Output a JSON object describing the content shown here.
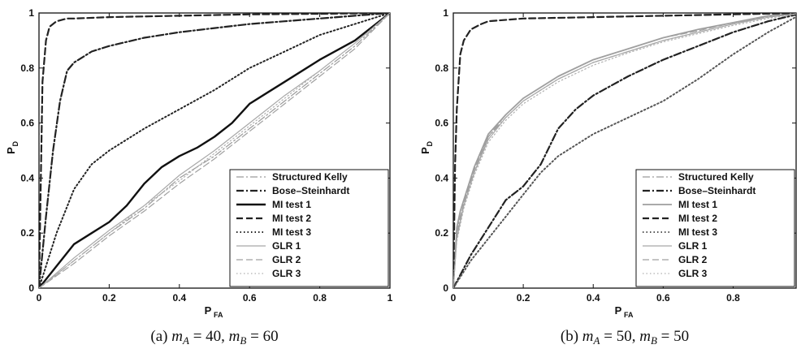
{
  "chart_data": [
    {
      "type": "line",
      "caption": "(a) m_A = 40, m_B = 60",
      "xlabel": "P",
      "xlabel_sub": "FA",
      "ylabel": "P",
      "ylabel_sub": "D",
      "xlim": [
        0,
        1
      ],
      "ylim": [
        0,
        1
      ],
      "xticks": [
        "0",
        "0.2",
        "0.4",
        "0.6",
        "0.8",
        "1"
      ],
      "yticks": [
        "0",
        "0.2",
        "0.4",
        "0.6",
        "0.8",
        "1"
      ],
      "grid": false,
      "legend_position": "bottom-right",
      "series": [
        {
          "name": "Structured Kelly",
          "style": "dashdot",
          "color": "#9a9a9a",
          "width": 1.2,
          "x": [
            0,
            0.1,
            0.2,
            0.3,
            0.4,
            0.5,
            0.6,
            0.7,
            0.8,
            0.9,
            1.0
          ],
          "y": [
            0,
            0.1,
            0.2,
            0.29,
            0.4,
            0.48,
            0.58,
            0.68,
            0.78,
            0.88,
            1.0
          ]
        },
        {
          "name": "Bose–Steinhardt",
          "style": "dashdot",
          "color": "#222222",
          "width": 2.2,
          "x": [
            0,
            0.02,
            0.04,
            0.06,
            0.08,
            0.1,
            0.15,
            0.2,
            0.3,
            0.4,
            0.5,
            0.6,
            0.7,
            0.8,
            0.9,
            1.0
          ],
          "y": [
            0,
            0.26,
            0.5,
            0.68,
            0.79,
            0.82,
            0.86,
            0.88,
            0.91,
            0.93,
            0.945,
            0.96,
            0.97,
            0.98,
            0.99,
            1.0
          ]
        },
        {
          "name": "MI test 1",
          "style": "solid",
          "color": "#111111",
          "width": 2.4,
          "x": [
            0,
            0.05,
            0.1,
            0.15,
            0.2,
            0.25,
            0.3,
            0.35,
            0.4,
            0.45,
            0.5,
            0.55,
            0.6,
            0.65,
            0.7,
            0.8,
            0.9,
            1.0
          ],
          "y": [
            0,
            0.08,
            0.16,
            0.2,
            0.24,
            0.3,
            0.38,
            0.44,
            0.48,
            0.51,
            0.55,
            0.6,
            0.67,
            0.71,
            0.75,
            0.83,
            0.9,
            1.0
          ]
        },
        {
          "name": "MI test 2",
          "style": "dashed",
          "color": "#222222",
          "width": 2.2,
          "x": [
            0,
            0.01,
            0.02,
            0.03,
            0.05,
            0.08,
            0.1,
            0.2,
            0.4,
            0.6,
            0.8,
            1.0
          ],
          "y": [
            0,
            0.75,
            0.9,
            0.95,
            0.97,
            0.98,
            0.98,
            0.985,
            0.99,
            0.995,
            0.997,
            1.0
          ]
        },
        {
          "name": "MI test 3",
          "style": "dotted",
          "color": "#222222",
          "width": 2.0,
          "x": [
            0,
            0.05,
            0.1,
            0.15,
            0.2,
            0.3,
            0.4,
            0.5,
            0.6,
            0.7,
            0.8,
            0.9,
            1.0
          ],
          "y": [
            0,
            0.2,
            0.36,
            0.45,
            0.5,
            0.58,
            0.65,
            0.72,
            0.8,
            0.86,
            0.92,
            0.96,
            1.0
          ]
        },
        {
          "name": "GLR 1",
          "style": "solid",
          "color": "#a8a8a8",
          "width": 1.2,
          "x": [
            0,
            0.1,
            0.2,
            0.3,
            0.4,
            0.5,
            0.6,
            0.7,
            0.8,
            0.9,
            1.0
          ],
          "y": [
            0,
            0.11,
            0.21,
            0.3,
            0.41,
            0.5,
            0.6,
            0.7,
            0.79,
            0.89,
            1.0
          ]
        },
        {
          "name": "GLR 2",
          "style": "dashed",
          "color": "#a0a0a0",
          "width": 1.2,
          "x": [
            0,
            0.1,
            0.2,
            0.3,
            0.4,
            0.5,
            0.6,
            0.7,
            0.8,
            0.9,
            1.0
          ],
          "y": [
            0,
            0.09,
            0.19,
            0.28,
            0.38,
            0.47,
            0.57,
            0.67,
            0.77,
            0.87,
            1.0
          ]
        },
        {
          "name": "GLR 3",
          "style": "dotted",
          "color": "#b0b0b0",
          "width": 1.2,
          "x": [
            0,
            0.1,
            0.2,
            0.3,
            0.4,
            0.5,
            0.6,
            0.7,
            0.8,
            0.9,
            1.0
          ],
          "y": [
            0,
            0.1,
            0.2,
            0.3,
            0.39,
            0.49,
            0.59,
            0.69,
            0.79,
            0.89,
            1.0
          ]
        }
      ]
    },
    {
      "type": "line",
      "caption": "(b) m_A = 50, m_B = 50",
      "xlabel": "P",
      "xlabel_sub": "FA",
      "ylabel": "P",
      "ylabel_sub": "D",
      "xlim": [
        0,
        1
      ],
      "ylim": [
        0,
        1
      ],
      "xticks": [
        "0",
        "0.2",
        "0.4",
        "0.6",
        "0.8"
      ],
      "yticks": [
        "0",
        "0.2",
        "0.4",
        "0.6",
        "0.8",
        "1"
      ],
      "grid": false,
      "legend_position": "bottom-right",
      "series": [
        {
          "name": "Structured Kelly",
          "style": "dashdot",
          "color": "#9a9a9a",
          "width": 1.2,
          "x": [
            0,
            0.01,
            0.02,
            0.04,
            0.06,
            0.1,
            0.15,
            0.2,
            0.3,
            0.4,
            0.5,
            0.6,
            0.7,
            0.8,
            0.9,
            1.0
          ],
          "y": [
            0,
            0.2,
            0.26,
            0.34,
            0.42,
            0.55,
            0.62,
            0.68,
            0.76,
            0.82,
            0.86,
            0.9,
            0.93,
            0.96,
            0.985,
            1.0
          ]
        },
        {
          "name": "Bose–Steinhardt",
          "style": "dashdot",
          "color": "#222222",
          "width": 2.2,
          "x": [
            0,
            0.05,
            0.1,
            0.15,
            0.2,
            0.25,
            0.3,
            0.35,
            0.4,
            0.5,
            0.6,
            0.7,
            0.8,
            0.9,
            1.0
          ],
          "y": [
            0,
            0.12,
            0.22,
            0.32,
            0.37,
            0.45,
            0.58,
            0.65,
            0.7,
            0.77,
            0.83,
            0.88,
            0.93,
            0.97,
            1.0
          ]
        },
        {
          "name": "MI test 1",
          "style": "solid",
          "color": "#9e9e9e",
          "width": 1.8,
          "x": [
            0,
            0.01,
            0.02,
            0.04,
            0.06,
            0.1,
            0.15,
            0.2,
            0.3,
            0.4,
            0.5,
            0.6,
            0.7,
            0.8,
            0.9,
            1.0
          ],
          "y": [
            0,
            0.22,
            0.28,
            0.36,
            0.44,
            0.56,
            0.63,
            0.69,
            0.77,
            0.83,
            0.87,
            0.91,
            0.94,
            0.965,
            0.99,
            1.0
          ]
        },
        {
          "name": "MI test 2",
          "style": "dashed",
          "color": "#222222",
          "width": 2.2,
          "x": [
            0,
            0.005,
            0.01,
            0.02,
            0.03,
            0.05,
            0.08,
            0.1,
            0.2,
            0.4,
            0.6,
            0.8,
            1.0
          ],
          "y": [
            0,
            0.45,
            0.65,
            0.85,
            0.9,
            0.94,
            0.96,
            0.97,
            0.98,
            0.985,
            0.99,
            0.995,
            1.0
          ]
        },
        {
          "name": "MI test 3",
          "style": "dotted",
          "color": "#555555",
          "width": 2.0,
          "x": [
            0,
            0.05,
            0.1,
            0.15,
            0.2,
            0.25,
            0.3,
            0.4,
            0.5,
            0.6,
            0.7,
            0.8,
            0.9,
            1.0
          ],
          "y": [
            0,
            0.1,
            0.18,
            0.26,
            0.34,
            0.42,
            0.48,
            0.56,
            0.62,
            0.68,
            0.76,
            0.85,
            0.93,
            1.0
          ]
        },
        {
          "name": "GLR 1",
          "style": "solid",
          "color": "#a8a8a8",
          "width": 1.2,
          "x": [
            0,
            0.01,
            0.03,
            0.06,
            0.1,
            0.15,
            0.2,
            0.3,
            0.4,
            0.5,
            0.6,
            0.7,
            0.8,
            0.9,
            1.0
          ],
          "y": [
            0,
            0.18,
            0.3,
            0.42,
            0.54,
            0.62,
            0.68,
            0.76,
            0.82,
            0.86,
            0.9,
            0.93,
            0.96,
            0.985,
            1.0
          ]
        },
        {
          "name": "GLR 2",
          "style": "dashed",
          "color": "#a0a0a0",
          "width": 1.2,
          "x": [
            0,
            0.01,
            0.03,
            0.06,
            0.1,
            0.15,
            0.2,
            0.3,
            0.4,
            0.5,
            0.6,
            0.7,
            0.8,
            0.9,
            1.0
          ],
          "y": [
            0,
            0.19,
            0.31,
            0.43,
            0.55,
            0.63,
            0.69,
            0.77,
            0.83,
            0.87,
            0.91,
            0.935,
            0.965,
            0.985,
            1.0
          ]
        },
        {
          "name": "GLR 3",
          "style": "dotted",
          "color": "#b0b0b0",
          "width": 1.2,
          "x": [
            0,
            0.01,
            0.03,
            0.06,
            0.1,
            0.15,
            0.2,
            0.3,
            0.4,
            0.5,
            0.6,
            0.7,
            0.8,
            0.9,
            1.0
          ],
          "y": [
            0,
            0.17,
            0.29,
            0.41,
            0.53,
            0.61,
            0.67,
            0.75,
            0.81,
            0.855,
            0.895,
            0.925,
            0.955,
            0.98,
            1.0
          ]
        }
      ]
    }
  ]
}
